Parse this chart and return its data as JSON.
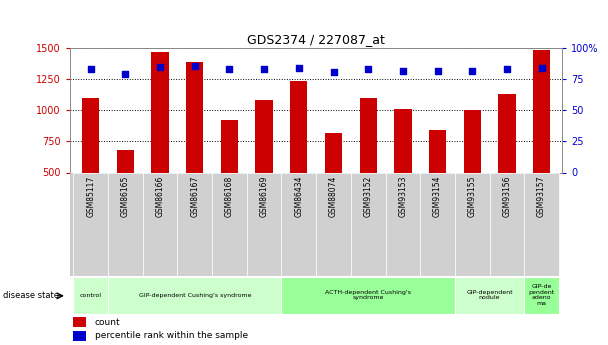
{
  "title": "GDS2374 / 227087_at",
  "samples": [
    "GSM85117",
    "GSM86165",
    "GSM86166",
    "GSM86167",
    "GSM86168",
    "GSM86169",
    "GSM86434",
    "GSM88074",
    "GSM93152",
    "GSM93153",
    "GSM93154",
    "GSM93155",
    "GSM93156",
    "GSM93157"
  ],
  "counts": [
    1100,
    680,
    1470,
    1390,
    920,
    1080,
    1240,
    820,
    1100,
    1010,
    845,
    1000,
    1130,
    1490
  ],
  "percentile": [
    83,
    79,
    85,
    86,
    83,
    83,
    84,
    81,
    83,
    82,
    82,
    82,
    83,
    84
  ],
  "ylim_left": [
    500,
    1500
  ],
  "ylim_right": [
    0,
    100
  ],
  "yticks_left": [
    500,
    750,
    1000,
    1250,
    1500
  ],
  "yticks_right": [
    0,
    25,
    50,
    75,
    100
  ],
  "bar_color": "#cc0000",
  "dot_color": "#0000cc",
  "grid_color": "#000000",
  "disease_groups": [
    {
      "label": "control",
      "start": 0,
      "end": 1,
      "color": "#ccffcc"
    },
    {
      "label": "GIP-dependent Cushing's syndrome",
      "start": 1,
      "end": 6,
      "color": "#ccffcc"
    },
    {
      "label": "ACTH-dependent Cushing's\nsyndrome",
      "start": 6,
      "end": 11,
      "color": "#99ff99"
    },
    {
      "label": "GIP-dependent\nnodule",
      "start": 11,
      "end": 13,
      "color": "#ccffcc"
    },
    {
      "label": "GIP-de\npendent\nadeno\nma",
      "start": 13,
      "end": 14,
      "color": "#99ff99"
    }
  ],
  "left_label_color": "#cc0000",
  "right_label_color": "#0000cc",
  "bar_width": 0.5,
  "xtick_gray": "#cccccc",
  "xtick_border": "#aaaaaa"
}
